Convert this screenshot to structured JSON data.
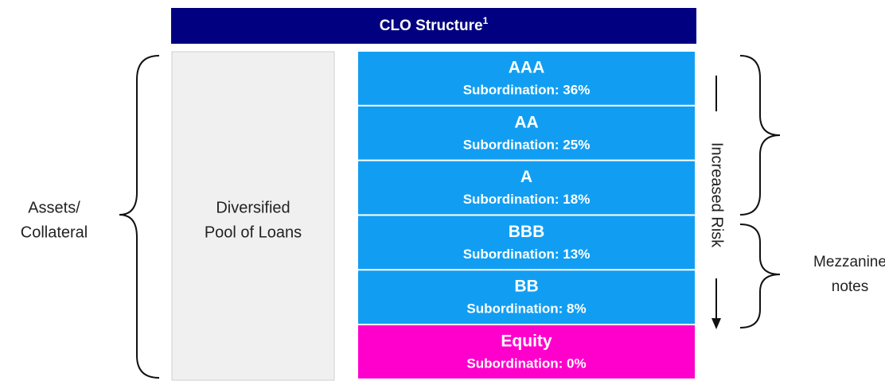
{
  "title": "CLO Structure",
  "title_note": "1",
  "assets_label": [
    "Assets/",
    "Collateral"
  ],
  "pool_label": [
    "Diversified",
    "Pool of Loans"
  ],
  "tranches": [
    {
      "name": "AAA",
      "subordination": "Subordination: 36%"
    },
    {
      "name": "AA",
      "subordination": "Subordination: 25%"
    },
    {
      "name": "A",
      "subordination": "Subordination: 18%"
    },
    {
      "name": "BBB",
      "subordination": "Subordination: 13%"
    },
    {
      "name": "BB",
      "subordination": "Subordination: 8%"
    },
    {
      "name": "Equity",
      "subordination": "Subordination: 0%"
    }
  ],
  "risk_label": "Increased Risk",
  "mezzanine_label": [
    "Mezzanine",
    "notes"
  ]
}
